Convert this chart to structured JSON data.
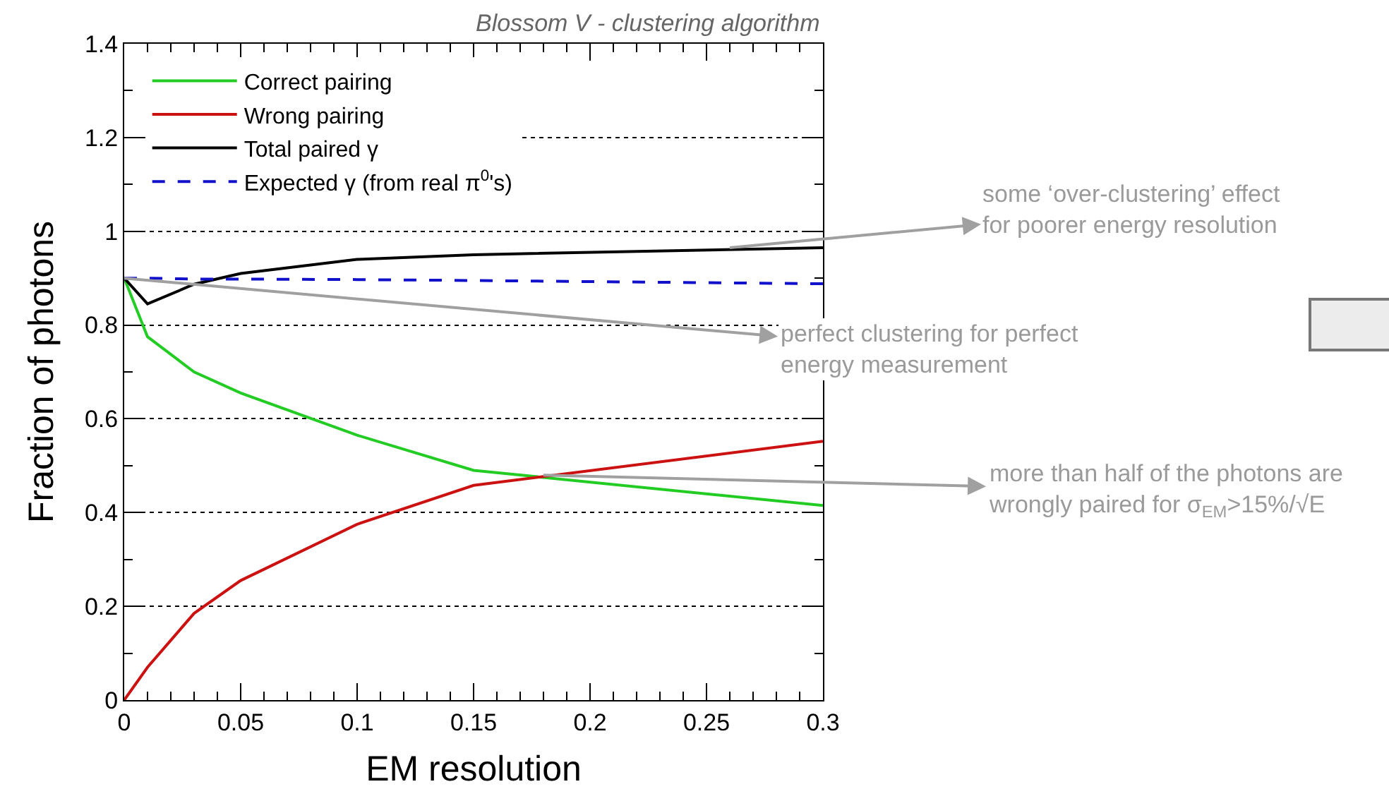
{
  "chart_data": {
    "type": "line",
    "title": "Blossom V - clustering algorithm",
    "xlabel": "EM resolution",
    "ylabel": "Fraction of photons",
    "x": [
      0,
      0.01,
      0.03,
      0.05,
      0.1,
      0.15,
      0.3
    ],
    "series": [
      {
        "name": "Correct pairing",
        "color": "#22cc22",
        "values": [
          0.9,
          0.775,
          0.7,
          0.655,
          0.565,
          0.49,
          0.415
        ]
      },
      {
        "name": "Wrong pairing",
        "color": "#cc1111",
        "values": [
          0,
          0.07,
          0.185,
          0.255,
          0.375,
          0.458,
          0.552
        ]
      },
      {
        "name": "Total paired γ",
        "color": "#000000",
        "values": [
          0.9,
          0.845,
          0.887,
          0.91,
          0.94,
          0.95,
          0.965
        ]
      },
      {
        "name": "Expected γ (from real π$^{0}$'s)",
        "color": "#1111cc",
        "line_style": "dashed",
        "values": [
          0.9,
          0.9,
          0.898,
          0.898,
          0.897,
          0.895,
          0.888
        ]
      }
    ],
    "xlim": [
      0,
      0.3
    ],
    "xticks": [
      0,
      0.05,
      0.1,
      0.15,
      0.2,
      0.25,
      0.3
    ],
    "ylim": [
      0,
      1.4
    ],
    "yticks": [
      0,
      0.2,
      0.4,
      0.6,
      0.8,
      1,
      1.2,
      1.4
    ],
    "grid": "y",
    "legend": "top left",
    "line_style": "solid",
    "marker": "none",
    "annotations": [
      {
        "text": "some ‘over-clustering’ effect\nfor poorer energy resolution",
        "x": 0.26,
        "y": 0.965
      },
      {
        "text": "perfect clustering for perfect\nenergy measurement",
        "x": 0,
        "y": 0.9
      },
      {
        "text": "more than half of the photons are\nwrongly paired for σ$_{EM}$>15%/√E",
        "x": 0.18,
        "y": 0.48
      }
    ]
  }
}
